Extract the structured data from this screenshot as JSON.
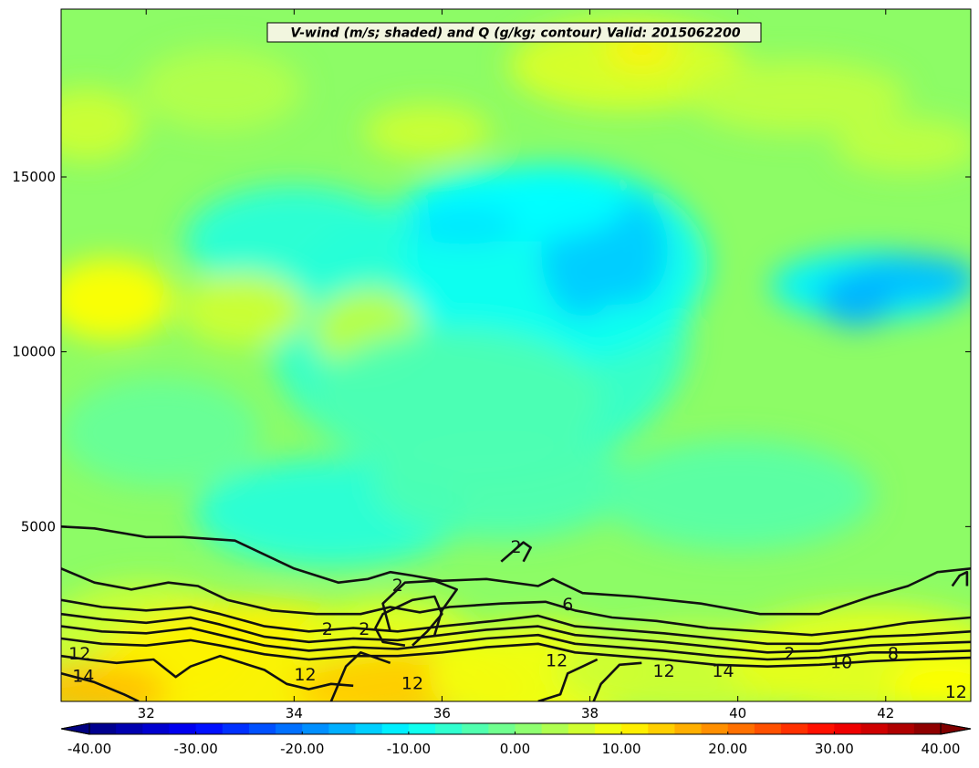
{
  "chart_data": {
    "type": "heatmap",
    "title": "V-wind (m/s; shaded) and Q (g/kg; contour) Valid: 2015062200",
    "x_ticks": [
      "32",
      "34",
      "36",
      "38",
      "40",
      "42"
    ],
    "x_tick_values": [
      32,
      34,
      36,
      38,
      40,
      42
    ],
    "xlim": [
      30.85,
      43.15
    ],
    "y_ticks": [
      "5000",
      "10000",
      "15000"
    ],
    "y_tick_values": [
      5000,
      10000,
      15000
    ],
    "ylim": [
      0,
      19800
    ],
    "colorbar": {
      "min": -40,
      "max": 40,
      "step": 2.5,
      "ticks": [
        "-40.00",
        "-30.00",
        "-20.00",
        "-10.00",
        "0.00",
        "10.00",
        "20.00",
        "30.00",
        "40.00"
      ],
      "tick_values": [
        -40,
        -30,
        -20,
        -10,
        0,
        10,
        20,
        30,
        40
      ],
      "extend": "both"
    },
    "contour_labels": [
      {
        "text": "2",
        "x": 35.4,
        "y": 3300
      },
      {
        "text": "2",
        "x": 37.0,
        "y": 4400
      },
      {
        "text": "2",
        "x": 34.45,
        "y": 2050
      },
      {
        "text": "2",
        "x": 34.95,
        "y": 2050
      },
      {
        "text": "6",
        "x": 37.7,
        "y": 2750
      },
      {
        "text": "12",
        "x": 31.1,
        "y": 1350
      },
      {
        "text": "14",
        "x": 31.15,
        "y": 700
      },
      {
        "text": "12",
        "x": 34.15,
        "y": 750
      },
      {
        "text": "12",
        "x": 35.6,
        "y": 500
      },
      {
        "text": "12",
        "x": 37.55,
        "y": 1150
      },
      {
        "text": "12",
        "x": 39.0,
        "y": 850
      },
      {
        "text": "14",
        "x": 39.8,
        "y": 850
      },
      {
        "text": "10",
        "x": 41.4,
        "y": 1100
      },
      {
        "text": "8",
        "x": 42.1,
        "y": 1350
      },
      {
        "text": "2",
        "x": 40.7,
        "y": 1350
      },
      {
        "text": "12",
        "x": 42.95,
        "y": 250
      }
    ]
  }
}
